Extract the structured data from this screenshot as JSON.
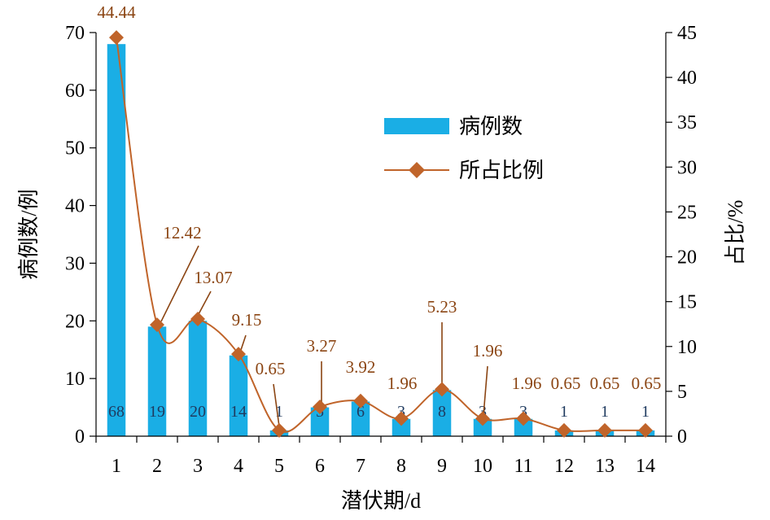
{
  "chart_data": {
    "type": "bar",
    "categories": [
      "1",
      "2",
      "3",
      "4",
      "5",
      "6",
      "7",
      "8",
      "9",
      "10",
      "11",
      "12",
      "13",
      "14"
    ],
    "series": [
      {
        "name": "病例数",
        "type": "bar",
        "axis": "left",
        "color": "#1AAEE5",
        "values": [
          68,
          19,
          20,
          14,
          1,
          5,
          6,
          3,
          8,
          3,
          3,
          1,
          1,
          1
        ],
        "labels": [
          "68",
          "19",
          "20",
          "14",
          "1",
          "5",
          "6",
          "3",
          "8",
          "3",
          "3",
          "1",
          "1",
          "1"
        ]
      },
      {
        "name": "所占比例",
        "type": "line",
        "axis": "right",
        "color": "#C0642A",
        "marker": "diamond",
        "values": [
          44.44,
          12.42,
          13.07,
          9.15,
          0.65,
          3.27,
          3.92,
          1.96,
          5.23,
          1.96,
          1.96,
          0.65,
          0.65,
          0.65
        ],
        "labels": [
          "44.44",
          "12.42",
          "13.07",
          "9.15",
          "0.65",
          "3.27",
          "3.92",
          "1.96",
          "5.23",
          "1.96",
          "1.96",
          "0.65",
          "0.65",
          "0.65"
        ]
      }
    ],
    "xlabel": "潜伏期/d",
    "ylabel": "病例数/例",
    "y2label": "占比/%",
    "ylim": [
      0,
      70
    ],
    "yticks": [
      0,
      10,
      20,
      30,
      40,
      50,
      60,
      70
    ],
    "y2lim": [
      0,
      45
    ],
    "y2ticks": [
      0,
      5,
      10,
      15,
      20,
      25,
      30,
      35,
      40,
      45
    ],
    "legend_position": "upper-right",
    "grid": false
  }
}
